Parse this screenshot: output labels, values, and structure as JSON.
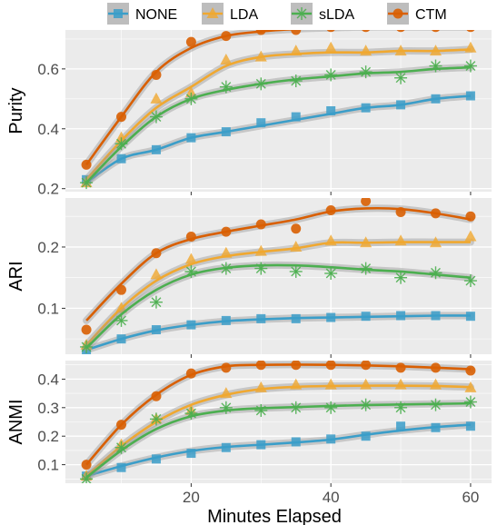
{
  "chart_data": {
    "type": "line",
    "xlabel": "Minutes Elapsed",
    "x_ticks": [
      20,
      40,
      60
    ],
    "xlim": [
      2,
      63
    ],
    "legend": {
      "placement": "top",
      "entries": [
        "NONE",
        "LDA",
        "sLDA",
        "CTM"
      ]
    },
    "series_styles": [
      {
        "name": "NONE",
        "color": "#3b9ec9",
        "marker": "square"
      },
      {
        "name": "LDA",
        "color": "#f0a830",
        "marker": "triangle"
      },
      {
        "name": "sLDA",
        "color": "#4caf50",
        "marker": "asterisk"
      },
      {
        "name": "CTM",
        "color": "#d95f02",
        "marker": "circle"
      }
    ],
    "panels": [
      {
        "ylabel": "Purity",
        "ylim": [
          0.19,
          0.73
        ],
        "y_ticks": [
          0.2,
          0.4,
          0.6
        ],
        "series": [
          {
            "name": "NONE",
            "points_x": [
              5,
              10,
              15,
              20,
              25,
              30,
              35,
              40,
              45,
              50,
              55,
              60
            ],
            "points_y": [
              0.23,
              0.3,
              0.33,
              0.37,
              0.39,
              0.42,
              0.44,
              0.46,
              0.47,
              0.48,
              0.5,
              0.51
            ],
            "curve_y": [
              0.22,
              0.3,
              0.33,
              0.37,
              0.39,
              0.41,
              0.43,
              0.45,
              0.47,
              0.48,
              0.5,
              0.51
            ]
          },
          {
            "name": "LDA",
            "points_x": [
              5,
              10,
              15,
              20,
              25,
              30,
              35,
              40,
              45,
              50,
              55,
              60
            ],
            "points_y": [
              0.22,
              0.37,
              0.5,
              0.52,
              0.63,
              0.64,
              0.66,
              0.67,
              0.66,
              0.66,
              0.66,
              0.67
            ],
            "curve_y": [
              0.23,
              0.36,
              0.47,
              0.54,
              0.61,
              0.64,
              0.65,
              0.655,
              0.655,
              0.66,
              0.66,
              0.665
            ]
          },
          {
            "name": "sLDA",
            "points_x": [
              5,
              10,
              15,
              20,
              25,
              30,
              35,
              40,
              45,
              50,
              55,
              60
            ],
            "points_y": [
              0.22,
              0.35,
              0.44,
              0.5,
              0.54,
              0.55,
              0.56,
              0.58,
              0.59,
              0.57,
              0.61,
              0.61
            ],
            "curve_y": [
              0.22,
              0.34,
              0.44,
              0.5,
              0.53,
              0.55,
              0.565,
              0.575,
              0.585,
              0.59,
              0.6,
              0.605
            ]
          },
          {
            "name": "CTM",
            "points_x": [
              5,
              10,
              15,
              20,
              25,
              30,
              35,
              40,
              45,
              50,
              55,
              60
            ],
            "points_y": [
              0.28,
              0.44,
              0.58,
              0.69,
              0.71,
              0.73,
              0.73,
              0.74,
              0.74,
              0.74,
              0.74,
              0.74
            ],
            "curve_y": [
              0.28,
              0.44,
              0.59,
              0.67,
              0.71,
              0.725,
              0.733,
              0.737,
              0.74,
              0.74,
              0.74,
              0.74
            ]
          }
        ]
      },
      {
        "ylabel": "ARI",
        "ylim": [
          0.025,
          0.28
        ],
        "y_ticks": [
          0.1,
          0.2
        ],
        "series": [
          {
            "name": "NONE",
            "points_x": [
              5,
              10,
              15,
              20,
              25,
              30,
              35,
              40,
              45,
              50,
              55,
              60
            ],
            "points_y": [
              0.03,
              0.05,
              0.065,
              0.073,
              0.08,
              0.083,
              0.083,
              0.085,
              0.087,
              0.088,
              0.088,
              0.087
            ],
            "curve_y": [
              0.032,
              0.05,
              0.064,
              0.073,
              0.079,
              0.082,
              0.084,
              0.085,
              0.086,
              0.087,
              0.088,
              0.088
            ]
          },
          {
            "name": "LDA",
            "points_x": [
              5,
              10,
              15,
              20,
              25,
              30,
              35,
              40,
              45,
              50,
              55,
              60
            ],
            "points_y": [
              0.04,
              0.1,
              0.155,
              0.18,
              0.19,
              0.193,
              0.2,
              0.21,
              0.207,
              0.21,
              0.207,
              0.217
            ],
            "curve_y": [
              0.04,
              0.1,
              0.145,
              0.172,
              0.185,
              0.192,
              0.198,
              0.207,
              0.207,
              0.208,
              0.208,
              0.208
            ]
          },
          {
            "name": "sLDA",
            "points_x": [
              5,
              10,
              15,
              20,
              25,
              30,
              35,
              40,
              45,
              50,
              55,
              60
            ],
            "points_y": [
              0.037,
              0.08,
              0.11,
              0.16,
              0.165,
              0.165,
              0.16,
              0.157,
              0.165,
              0.15,
              0.158,
              0.145
            ],
            "curve_y": [
              0.035,
              0.09,
              0.13,
              0.155,
              0.166,
              0.17,
              0.17,
              0.167,
              0.163,
              0.16,
              0.155,
              0.15
            ]
          },
          {
            "name": "CTM",
            "points_x": [
              5,
              10,
              15,
              20,
              25,
              30,
              35,
              40,
              45,
              50,
              55,
              60
            ],
            "points_y": [
              0.065,
              0.13,
              0.19,
              0.217,
              0.225,
              0.237,
              0.23,
              0.26,
              0.275,
              0.257,
              0.255,
              0.25
            ],
            "curve_y": [
              0.08,
              0.14,
              0.19,
              0.213,
              0.225,
              0.235,
              0.245,
              0.258,
              0.263,
              0.262,
              0.255,
              0.245
            ]
          }
        ]
      },
      {
        "ylabel": "ANMI",
        "ylim": [
          0.035,
          0.465
        ],
        "y_ticks": [
          0.1,
          0.2,
          0.3,
          0.4
        ],
        "series": [
          {
            "name": "NONE",
            "points_x": [
              5,
              10,
              15,
              20,
              25,
              30,
              35,
              40,
              45,
              50,
              55,
              60
            ],
            "points_y": [
              0.06,
              0.09,
              0.12,
              0.14,
              0.16,
              0.17,
              0.18,
              0.19,
              0.2,
              0.235,
              0.23,
              0.235
            ],
            "curve_y": [
              0.06,
              0.095,
              0.125,
              0.148,
              0.162,
              0.17,
              0.178,
              0.188,
              0.205,
              0.22,
              0.232,
              0.24
            ]
          },
          {
            "name": "LDA",
            "points_x": [
              5,
              10,
              15,
              20,
              25,
              30,
              35,
              40,
              45,
              50,
              55,
              60
            ],
            "points_y": [
              0.06,
              0.17,
              0.26,
              0.29,
              0.35,
              0.37,
              0.38,
              0.38,
              0.38,
              0.38,
              0.38,
              0.37
            ],
            "curve_y": [
              0.06,
              0.165,
              0.25,
              0.31,
              0.345,
              0.365,
              0.373,
              0.376,
              0.377,
              0.377,
              0.376,
              0.372
            ]
          },
          {
            "name": "sLDA",
            "points_x": [
              5,
              10,
              15,
              20,
              25,
              30,
              35,
              40,
              45,
              50,
              55,
              60
            ],
            "points_y": [
              0.05,
              0.16,
              0.26,
              0.28,
              0.3,
              0.29,
              0.3,
              0.3,
              0.31,
              0.3,
              0.31,
              0.32
            ],
            "curve_y": [
              0.055,
              0.15,
              0.225,
              0.27,
              0.29,
              0.298,
              0.302,
              0.306,
              0.309,
              0.311,
              0.313,
              0.315
            ]
          },
          {
            "name": "CTM",
            "points_x": [
              5,
              10,
              15,
              20,
              25,
              30,
              35,
              40,
              45,
              50,
              55,
              60
            ],
            "points_y": [
              0.1,
              0.24,
              0.34,
              0.42,
              0.44,
              0.45,
              0.45,
              0.45,
              0.45,
              0.44,
              0.44,
              0.43
            ],
            "curve_y": [
              0.1,
              0.24,
              0.345,
              0.415,
              0.445,
              0.45,
              0.451,
              0.45,
              0.448,
              0.445,
              0.44,
              0.435
            ]
          }
        ]
      }
    ]
  }
}
